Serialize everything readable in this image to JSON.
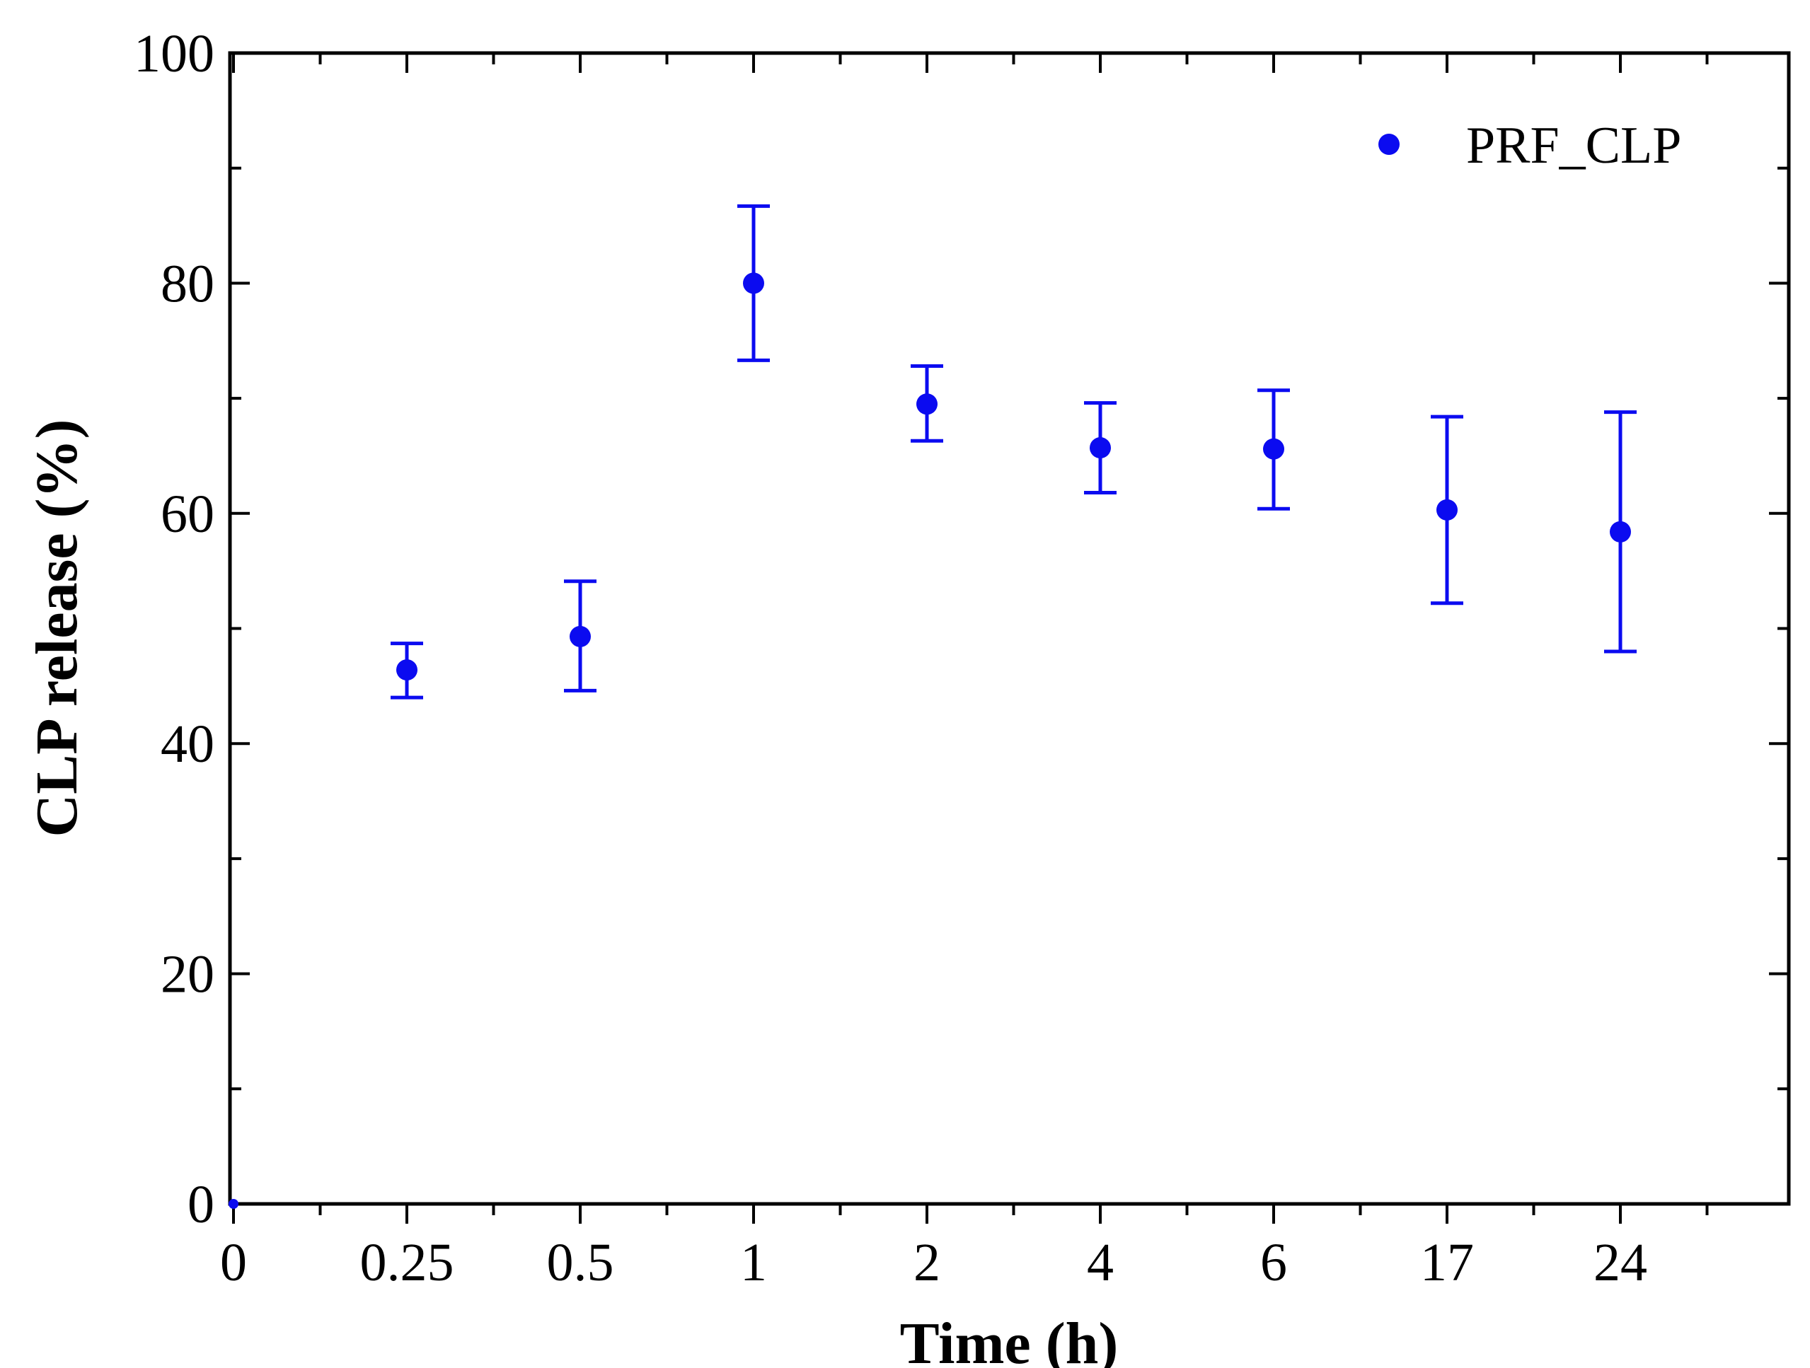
{
  "chart_data": {
    "type": "scatter",
    "title": "",
    "xlabel": "Time (h)",
    "ylabel": "CLP release (%)",
    "categories": [
      "0",
      "0.25",
      "0.5",
      "1",
      "2",
      "4",
      "6",
      "17",
      "24"
    ],
    "ylim": [
      0,
      100
    ],
    "yticks": [
      0,
      20,
      40,
      60,
      80,
      100
    ],
    "ytick_labels": [
      "0",
      "20",
      "40",
      "60",
      "80",
      "100"
    ],
    "grid": false,
    "legend_position": "top-right",
    "series": [
      {
        "name": "PRF_CLP",
        "color": "#0b0bf0",
        "values": [
          0,
          46.4,
          49.3,
          80.0,
          69.5,
          65.7,
          65.6,
          60.3,
          58.4
        ],
        "error_upper": [
          null,
          48.7,
          54.1,
          86.7,
          72.8,
          69.6,
          70.7,
          68.4,
          68.8
        ],
        "error_lower": [
          null,
          44.0,
          44.6,
          73.3,
          66.3,
          61.8,
          60.4,
          52.2,
          48.0
        ]
      }
    ]
  }
}
